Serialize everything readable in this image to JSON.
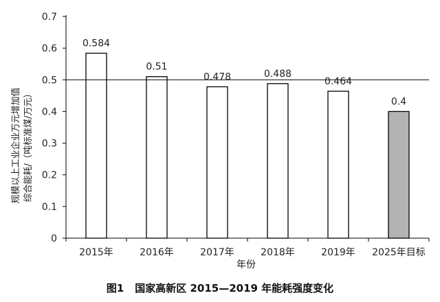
{
  "chart_data": {
    "type": "bar",
    "categories": [
      "2015年",
      "2016年",
      "2017年",
      "2018年",
      "2019年",
      "2025年目标"
    ],
    "values": [
      0.584,
      0.51,
      0.478,
      0.488,
      0.464,
      0.4
    ],
    "data_labels": [
      "0.584",
      "0.51",
      "0.478",
      "0.488",
      "0.464",
      "0.4"
    ],
    "ylim": [
      0,
      0.7
    ],
    "yticks": [
      0,
      0.1,
      0.2,
      0.3,
      0.4,
      0.5,
      0.6,
      0.7
    ],
    "ytick_labels": [
      "0",
      "0.1",
      "0.2",
      "0.3",
      "0.4",
      "0.5",
      "0.6",
      "0.7"
    ],
    "xlabel": "年份",
    "ylabel_line1": "规模以上工业企业万元增加值",
    "ylabel_line2": "综合能耗/（吨标准煤/万元）",
    "reference_line": 0.5,
    "grid": false,
    "bar_fill": [
      "#ffffff",
      "#ffffff",
      "#ffffff",
      "#ffffff",
      "#ffffff",
      "#b3b3b3"
    ],
    "bar_stroke": "#000000"
  },
  "caption": {
    "number": "图1",
    "text": "国家高新区 2015—2019 年能耗强度变化"
  }
}
